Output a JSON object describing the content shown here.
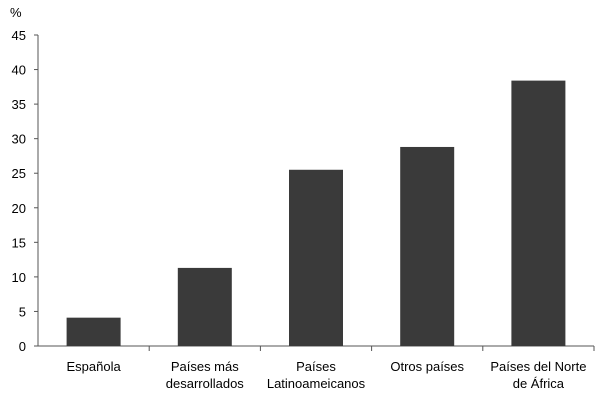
{
  "chart_data": {
    "type": "bar",
    "ylabel": "%",
    "ylim": [
      0,
      45
    ],
    "yticks": [
      0,
      5,
      10,
      15,
      20,
      25,
      30,
      35,
      40,
      45
    ],
    "categories": [
      [
        "Española"
      ],
      [
        "Países más",
        "desarrollados"
      ],
      [
        "Países",
        "Latinoameicanos"
      ],
      [
        "Otros países"
      ],
      [
        "Países del Norte",
        "de África"
      ]
    ],
    "values": [
      4.1,
      11.3,
      25.5,
      28.8,
      38.4
    ],
    "bar_color": "#3a3a3a",
    "grid": false,
    "legend": "none"
  }
}
